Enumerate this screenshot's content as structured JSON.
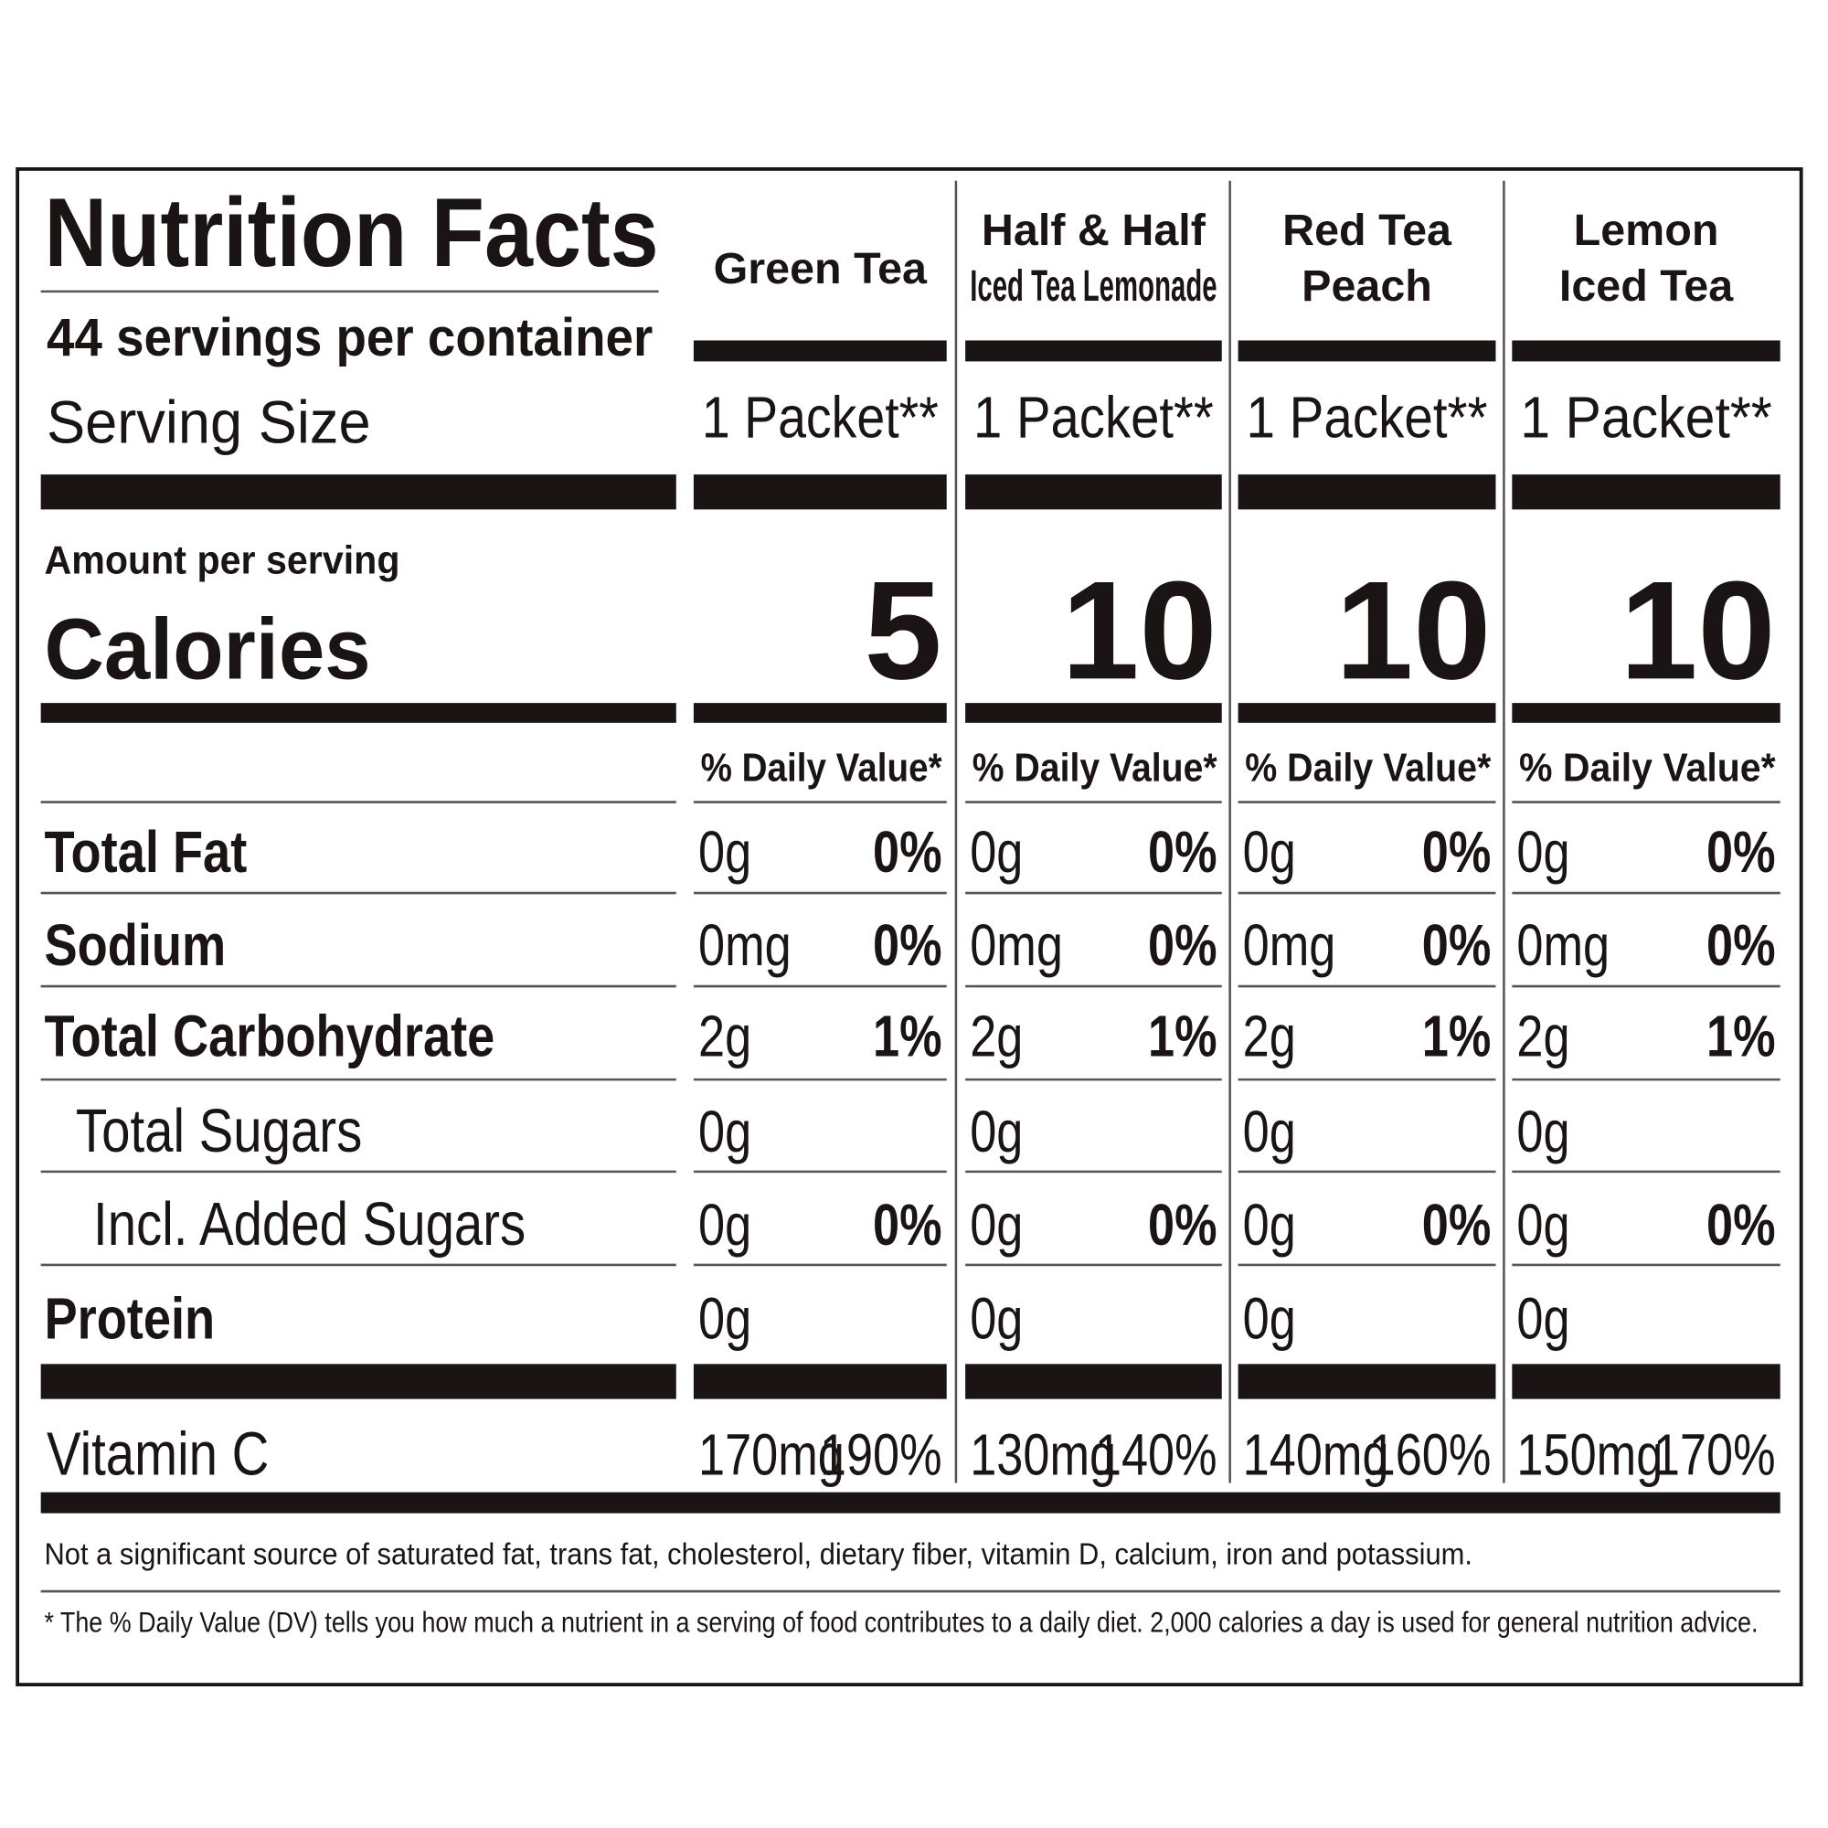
{
  "header": {
    "title": "Nutrition Facts",
    "servings": "44 servings per container",
    "serving_size_label": "Serving Size",
    "amount_label": "Amount per serving",
    "calories_label": "Calories"
  },
  "products": [
    {
      "name": [
        "Green Tea"
      ],
      "serving_size": "1 Packet**",
      "calories": 5,
      "dv_header": "% Daily Value*"
    },
    {
      "name": [
        "Half & Half",
        "Iced Tea Lemonade"
      ],
      "serving_size": "1 Packet**",
      "calories": 10,
      "dv_header": "% Daily Value*"
    },
    {
      "name": [
        "Red Tea",
        "Peach"
      ],
      "serving_size": "1 Packet**",
      "calories": 10,
      "dv_header": "% Daily Value*"
    },
    {
      "name": [
        "Lemon",
        "Iced Tea"
      ],
      "serving_size": "1 Packet**",
      "calories": 10,
      "dv_header": "% Daily Value*"
    }
  ],
  "nutrients": [
    {
      "label": "Total Fat",
      "values": [
        {
          "amount": "0g",
          "dv": "0%"
        },
        {
          "amount": "0g",
          "dv": "0%"
        },
        {
          "amount": "0g",
          "dv": "0%"
        },
        {
          "amount": "0g",
          "dv": "0%"
        }
      ]
    },
    {
      "label": "Sodium",
      "values": [
        {
          "amount": "0mg",
          "dv": "0%"
        },
        {
          "amount": "0mg",
          "dv": "0%"
        },
        {
          "amount": "0mg",
          "dv": "0%"
        },
        {
          "amount": "0mg",
          "dv": "0%"
        }
      ]
    },
    {
      "label": "Total Carbohydrate",
      "values": [
        {
          "amount": "2g",
          "dv": "1%"
        },
        {
          "amount": "2g",
          "dv": "1%"
        },
        {
          "amount": "2g",
          "dv": "1%"
        },
        {
          "amount": "2g",
          "dv": "1%"
        }
      ]
    },
    {
      "label": "Total Sugars",
      "values": [
        {
          "amount": "0g"
        },
        {
          "amount": "0g"
        },
        {
          "amount": "0g"
        },
        {
          "amount": "0g"
        }
      ]
    },
    {
      "label": "Incl. Added Sugars",
      "values": [
        {
          "amount": "0g",
          "dv": "0%"
        },
        {
          "amount": "0g",
          "dv": "0%"
        },
        {
          "amount": "0g",
          "dv": "0%"
        },
        {
          "amount": "0g",
          "dv": "0%"
        }
      ]
    },
    {
      "label": "Protein",
      "values": [
        {
          "amount": "0g"
        },
        {
          "amount": "0g"
        },
        {
          "amount": "0g"
        },
        {
          "amount": "0g"
        }
      ]
    },
    {
      "label": "Vitamin C",
      "values": [
        {
          "amount": "170mg",
          "dv": "190%"
        },
        {
          "amount": "130mg",
          "dv": "140%"
        },
        {
          "amount": "140mg",
          "dv": "160%"
        },
        {
          "amount": "150mg",
          "dv": "170%"
        }
      ]
    }
  ],
  "footnotes": [
    "Not a significant source of saturated fat, trans fat, cholesterol, dietary fiber, vitamin D, calcium, iron and potassium.",
    "* The % Daily Value (DV) tells you how much a nutrient in a serving of food contributes to a daily diet. 2,000 calories a day is used for general nutrition advice."
  ]
}
